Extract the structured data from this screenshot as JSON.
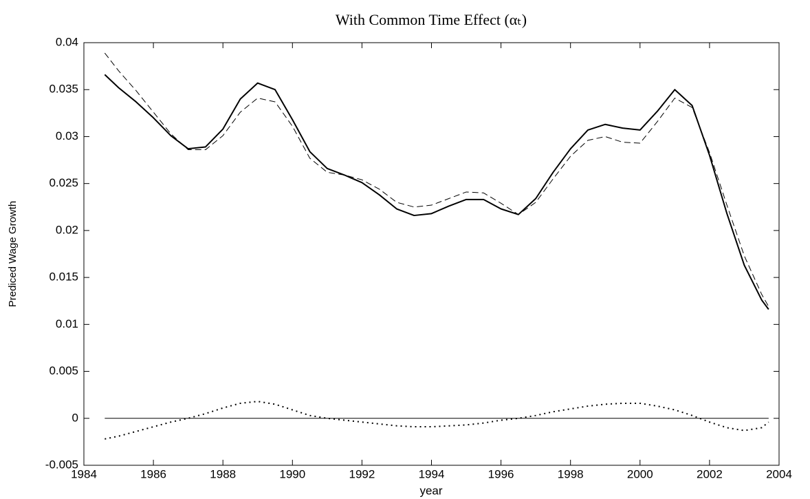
{
  "chart_data": {
    "type": "line",
    "title": "With Common Time Effect (αₜ)",
    "x_label": "year",
    "y_label": "Prediced Wage Growth",
    "x": [
      1984.6,
      1985,
      1985.5,
      1986,
      1986.5,
      1987,
      1987.5,
      1988,
      1988.5,
      1989,
      1989.5,
      1990,
      1990.5,
      1991,
      1991.5,
      1992,
      1992.5,
      1993,
      1993.5,
      1994,
      1994.5,
      1995,
      1995.5,
      1996,
      1996.5,
      1997,
      1997.5,
      1998,
      1998.5,
      1999,
      1999.5,
      2000,
      2000.5,
      2001,
      2001.5,
      2002,
      2002.5,
      2003,
      2003.5,
      2003.7
    ],
    "series": [
      {
        "color": "#000000",
        "style": "solid",
        "width": 2,
        "values": [
          0.0366,
          0.0352,
          0.0337,
          0.032,
          0.0301,
          0.0287,
          0.0289,
          0.0308,
          0.034,
          0.0357,
          0.035,
          0.0318,
          0.0284,
          0.0266,
          0.0259,
          0.0251,
          0.0238,
          0.0223,
          0.0216,
          0.0218,
          0.0226,
          0.0233,
          0.0233,
          0.0223,
          0.0217,
          0.0234,
          0.0262,
          0.0287,
          0.0307,
          0.0313,
          0.0309,
          0.0307,
          0.0327,
          0.035,
          0.0333,
          0.028,
          0.0218,
          0.0163,
          0.0126,
          0.0116
        ]
      },
      {
        "color": "#000000",
        "style": "dashed",
        "width": 1,
        "values": [
          0.0389,
          0.037,
          0.0349,
          0.0326,
          0.0303,
          0.0286,
          0.0286,
          0.0301,
          0.0326,
          0.0341,
          0.0337,
          0.0311,
          0.0277,
          0.0262,
          0.0259,
          0.0254,
          0.0244,
          0.023,
          0.0225,
          0.0227,
          0.0234,
          0.0241,
          0.024,
          0.0229,
          0.0217,
          0.023,
          0.0255,
          0.0279,
          0.0296,
          0.03,
          0.0294,
          0.0293,
          0.0316,
          0.0341,
          0.0331,
          0.0283,
          0.0227,
          0.0173,
          0.0132,
          0.0119
        ]
      },
      {
        "color": "#000000",
        "style": "dotted",
        "width": 2,
        "values": [
          -0.0022,
          -0.0019,
          -0.0014,
          -0.0009,
          -0.0004,
          0.0,
          0.0005,
          0.0011,
          0.0016,
          0.0018,
          0.0015,
          0.0009,
          0.0003,
          0.0,
          -0.0002,
          -0.0004,
          -0.0006,
          -0.0008,
          -0.0009,
          -0.0009,
          -0.0008,
          -0.0007,
          -0.0005,
          -0.0002,
          0.0,
          0.0003,
          0.0007,
          0.001,
          0.0013,
          0.0015,
          0.0016,
          0.0016,
          0.0013,
          0.0009,
          0.0003,
          -0.0004,
          -0.001,
          -0.0013,
          -0.001,
          -0.0004
        ]
      },
      {
        "color": "#000000",
        "style": "solid",
        "width": 1,
        "values": [
          0,
          0,
          0,
          0,
          0,
          0,
          0,
          0,
          0,
          0,
          0,
          0,
          0,
          0,
          0,
          0,
          0,
          0,
          0,
          0,
          0,
          0,
          0,
          0,
          0,
          0,
          0,
          0,
          0,
          0,
          0,
          0,
          0,
          0,
          0,
          0,
          0,
          0,
          0,
          0
        ]
      }
    ],
    "xlim": [
      1984,
      2004
    ],
    "xticks": [
      1984,
      1986,
      1988,
      1990,
      1992,
      1994,
      1996,
      1998,
      2000,
      2002,
      2004
    ],
    "ylim": [
      -0.005,
      0.04
    ],
    "yticks": [
      -0.005,
      0,
      0.005,
      0.01,
      0.015,
      0.02,
      0.025,
      0.03,
      0.035,
      0.04
    ],
    "grid": false
  }
}
